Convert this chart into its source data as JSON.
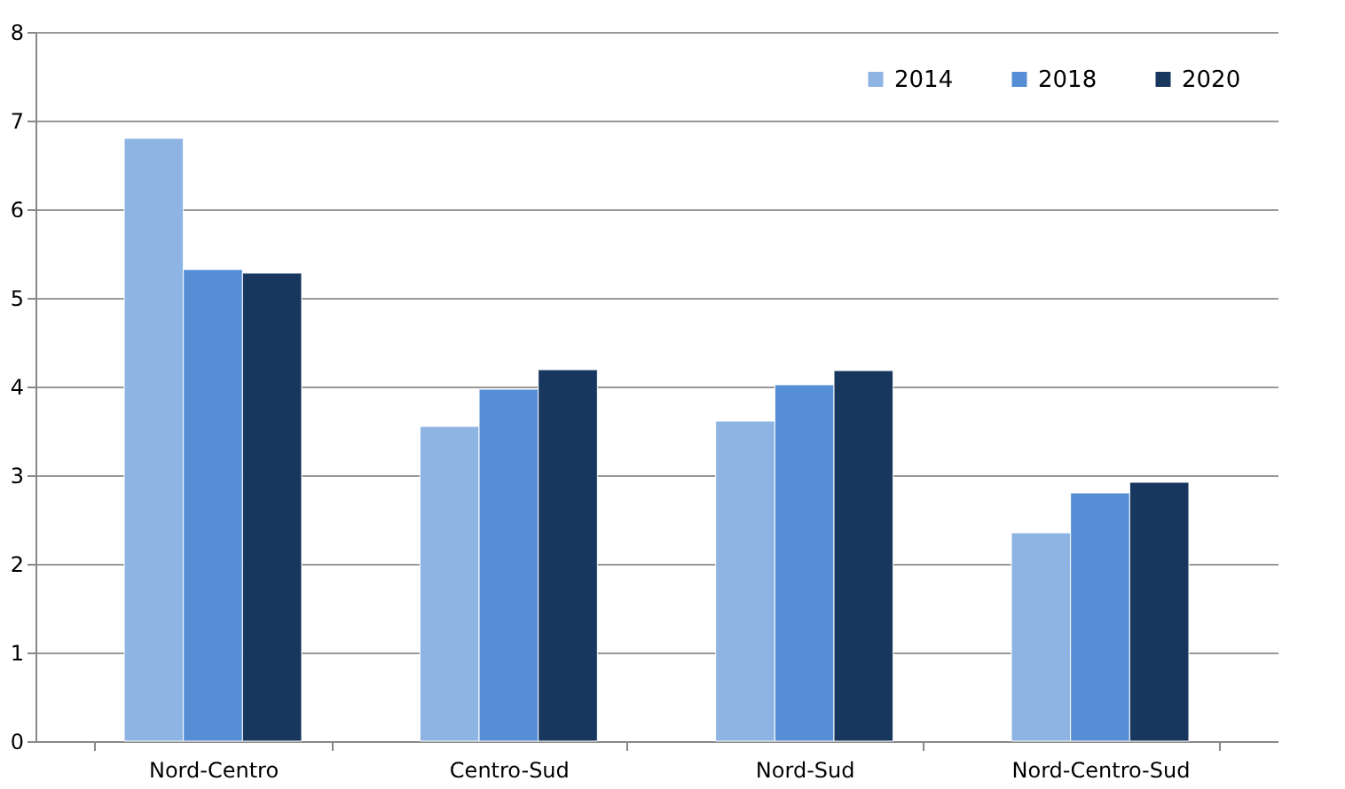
{
  "chart_data": {
    "type": "bar",
    "categories": [
      "Nord-Centro",
      "Centro-Sud",
      "Nord-Sud",
      "Nord-Centro-Sud"
    ],
    "series": [
      {
        "name": "2014",
        "color": "#8eb4e3",
        "values": [
          6.8,
          3.55,
          3.61,
          2.35
        ]
      },
      {
        "name": "2018",
        "color": "#558ed5",
        "values": [
          5.32,
          3.97,
          4.02,
          2.8
        ]
      },
      {
        "name": "2020",
        "color": "#17375e",
        "values": [
          5.28,
          4.19,
          4.18,
          2.92
        ]
      }
    ],
    "ylim": [
      0,
      8
    ],
    "yticks": [
      0,
      1,
      2,
      3,
      4,
      5,
      6,
      7,
      8
    ],
    "grid": "y",
    "legend": "top right"
  }
}
